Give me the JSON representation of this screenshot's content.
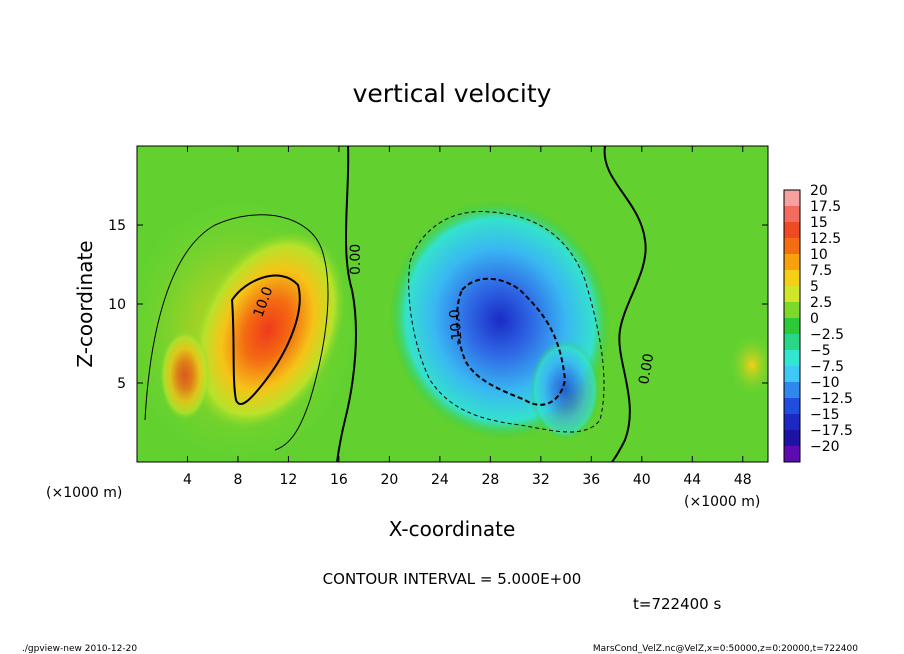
{
  "chart_data": {
    "type": "heatmap",
    "title": "vertical velocity",
    "xlabel": "X-coordinate",
    "ylabel": "Z-coordinate",
    "x_unit_left": "(×1000 m)",
    "x_unit_right": "(×1000 m)",
    "xlim": [
      0,
      50
    ],
    "ylim": [
      0,
      20
    ],
    "x_ticks": [
      "4",
      "8",
      "12",
      "16",
      "20",
      "24",
      "28",
      "32",
      "36",
      "40",
      "44",
      "48"
    ],
    "x_tick_values": [
      4,
      8,
      12,
      16,
      20,
      24,
      28,
      32,
      36,
      40,
      44,
      48
    ],
    "y_ticks": [
      "5",
      "10",
      "15"
    ],
    "y_tick_values": [
      5,
      10,
      15
    ],
    "colorbar": {
      "labels": [
        "20",
        "17.5",
        "15",
        "12.5",
        "10",
        "7.5",
        "5",
        "2.5",
        "0",
        "−2.5",
        "−5",
        "−7.5",
        "−10",
        "−12.5",
        "−15",
        "−17.5",
        "−20"
      ],
      "colors": [
        "#f7a0a0",
        "#f36b5e",
        "#ef4a26",
        "#f56d12",
        "#f7a20c",
        "#f5cf16",
        "#d2e628",
        "#7ed82c",
        "#2ec938",
        "#29d886",
        "#33e6d0",
        "#3ec8f4",
        "#2f88ec",
        "#1f4ede",
        "#1b28c2",
        "#1d12a4",
        "#5c0cb0"
      ]
    },
    "contour_labels": [
      "10.0",
      "0.00",
      "-10.0",
      "0.00"
    ],
    "features": [
      {
        "kind": "updraft",
        "x": 9.5,
        "z": 8.0,
        "peak": 13
      },
      {
        "kind": "downdraft",
        "x": 28.5,
        "z": 8.0,
        "peak": -14
      }
    ],
    "grid": false,
    "legend_position": "right"
  },
  "annotations": {
    "contour_interval": "CONTOUR INTERVAL = 5.000E+00",
    "time": "t=722400  s",
    "footer_left": "./gpview-new  2010-12-20",
    "footer_right": "MarsCond_VelZ.nc@VelZ,x=0:50000,z=0:20000,t=722400"
  }
}
